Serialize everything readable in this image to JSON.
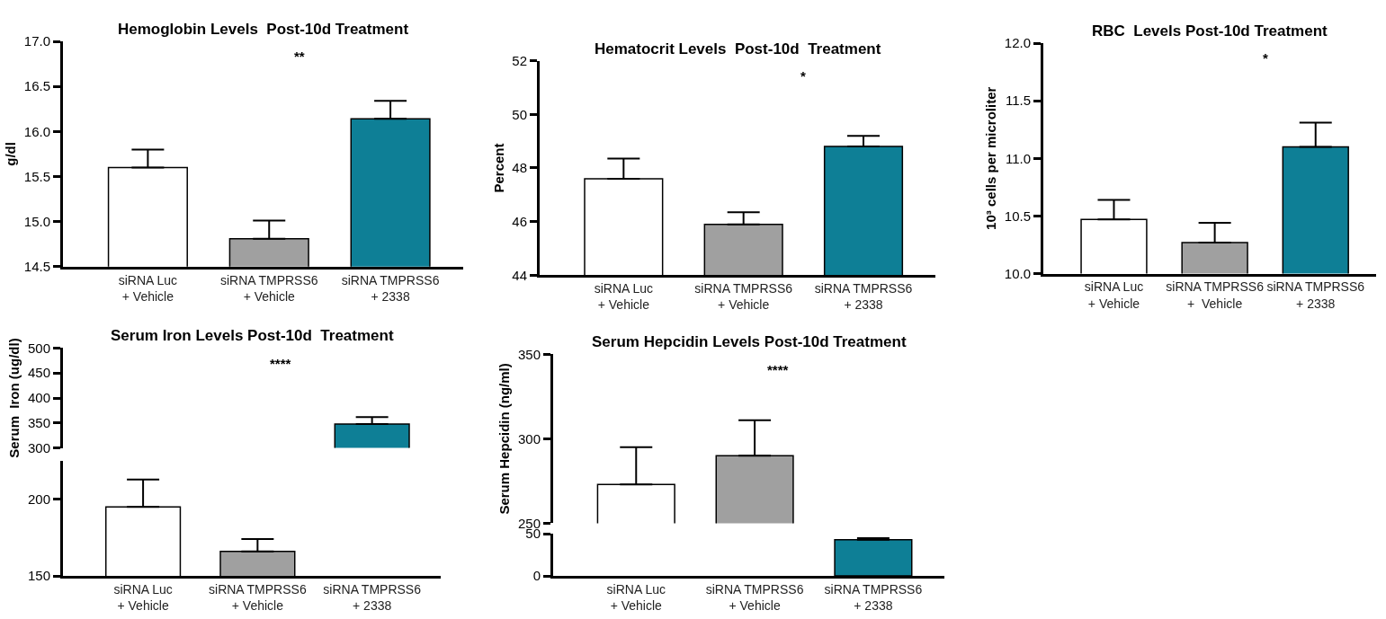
{
  "chart_data": [
    {
      "type": "bar",
      "title": "Hemoglobin Levels  Post-10d Treatment",
      "ylabel": "g/dl",
      "categories": [
        "siRNA Luc\n+ Vehicle",
        "siRNA TMPRSS6\n+ Vehicle",
        "siRNA TMPRSS6\n+ 2338"
      ],
      "values": [
        15.6,
        14.81,
        16.14
      ],
      "colors": [
        "#ffffff",
        "#a0a0a0",
        "#0e7f96"
      ],
      "errors": [
        [
          15.6,
          15.8
        ],
        [
          14.81,
          15.01
        ],
        [
          16.14,
          16.34
        ]
      ],
      "ylim": [
        14.5,
        17.0
      ],
      "yticks": [
        {
          "value": 14.5,
          "label": "14.5"
        },
        {
          "value": 15,
          "label": "15.0"
        },
        {
          "value": 15.5,
          "label": "15.5"
        },
        {
          "value": 16,
          "label": "16.0"
        },
        {
          "value": 16.5,
          "label": "16.5"
        },
        {
          "value": 17,
          "label": "17.0"
        }
      ],
      "grid": false,
      "annotations": [
        "**"
      ]
    },
    {
      "type": "bar",
      "title": "Hematocrit Levels  Post-10d  Treatment",
      "ylabel": "Percent",
      "categories": [
        "siRNA Luc\n+ Vehicle",
        "siRNA TMPRSS6\n+ Vehicle",
        "siRNA TMPRSS6\n+ 2338"
      ],
      "values": [
        47.6,
        45.9,
        48.8
      ],
      "colors": [
        "#ffffff",
        "#a0a0a0",
        "#0e7f96"
      ],
      "errors": [
        [
          47.6,
          48.35
        ],
        [
          45.9,
          46.35
        ],
        [
          48.8,
          49.2
        ]
      ],
      "ylim": [
        44,
        52
      ],
      "yticks": [
        44,
        46,
        48,
        50,
        52
      ],
      "grid": false,
      "annotations": [
        "*"
      ]
    },
    {
      "type": "bar",
      "title": "RBC  Levels Post-10d Treatment",
      "ylabel": "10³ cells per microliter",
      "categories": [
        "siRNA Luc\n+ Vehicle",
        "siRNA TMPRSS6\n+  Vehicle",
        "siRNA TMPRSS6\n+ 2338"
      ],
      "values": [
        10.47,
        10.27,
        11.1
      ],
      "colors": [
        "#ffffff",
        "#a0a0a0",
        "#0e7f96"
      ],
      "errors": [
        [
          10.47,
          10.64
        ],
        [
          10.27,
          10.44
        ],
        [
          11.1,
          11.31
        ]
      ],
      "ylim": [
        10.0,
        12.0
      ],
      "yticks": [
        {
          "value": 10,
          "label": "10.0"
        },
        {
          "value": 10.5,
          "label": "10.5"
        },
        {
          "value": 11,
          "label": "11.0"
        },
        {
          "value": 11.5,
          "label": "11.5"
        },
        {
          "value": 12,
          "label": "12.0"
        }
      ],
      "grid": false,
      "annotations": [
        "*"
      ]
    },
    {
      "type": "bar",
      "title": "Serum Iron Levels Post-10d  Treatment",
      "ylabel": "Serum  Iron (ug/dl)",
      "categories": [
        null,
        null,
        null
      ],
      "values": [
        null,
        null,
        348
      ],
      "colors": [
        "#ffffff",
        "#a0a0a0",
        "#0e7f96"
      ],
      "errors": [
        null,
        null,
        [
          348,
          362
        ]
      ],
      "ylim": [
        300,
        500
      ],
      "yticks": [
        300,
        350,
        400,
        450,
        500
      ],
      "tick_labels": "y",
      "grid": false,
      "annotations": [
        "****"
      ]
    },
    {
      "type": "bar",
      "categories": [
        "siRNA Luc\n+ Vehicle",
        "siRNA TMPRSS6\n+ Vehicle",
        "siRNA TMPRSS6\n+ 2338"
      ],
      "values": [
        195,
        166,
        null
      ],
      "colors": [
        "#ffffff",
        "#a0a0a0",
        "#0e7f96"
      ],
      "errors": [
        [
          195,
          213
        ],
        [
          166,
          174
        ],
        null
      ],
      "ylim": [
        150,
        225
      ],
      "yticks": [
        150,
        200
      ],
      "grid": false
    },
    {
      "type": "bar",
      "title": "Serum Hepcidin Levels Post-10d Treatment",
      "ylabel": "Serum Hepcidin (ng/ml)",
      "categories": [
        null,
        null,
        null
      ],
      "values": [
        273,
        290,
        null
      ],
      "colors": [
        "#ffffff",
        "#a0a0a0",
        "#0e7f96"
      ],
      "errors": [
        [
          273,
          295
        ],
        [
          290,
          311
        ],
        null
      ],
      "ylim": [
        250,
        350
      ],
      "yticks": [
        250,
        300,
        350
      ],
      "tick_labels": "y",
      "grid": false,
      "annotations": [
        "****"
      ]
    },
    {
      "type": "bar",
      "categories": [
        "siRNA Luc\n+ Vehicle",
        "siRNA TMPRSS6\n+ Vehicle",
        "siRNA TMPRSS6\n+ 2338"
      ],
      "values": [
        null,
        null,
        43
      ],
      "colors": [
        "#ffffff",
        "#a0a0a0",
        "#0e7f96"
      ],
      "errors": [
        null,
        null,
        [
          43,
          45
        ]
      ],
      "ylim": [
        0,
        50
      ],
      "yticks": [
        0,
        50
      ],
      "grid": false
    }
  ]
}
